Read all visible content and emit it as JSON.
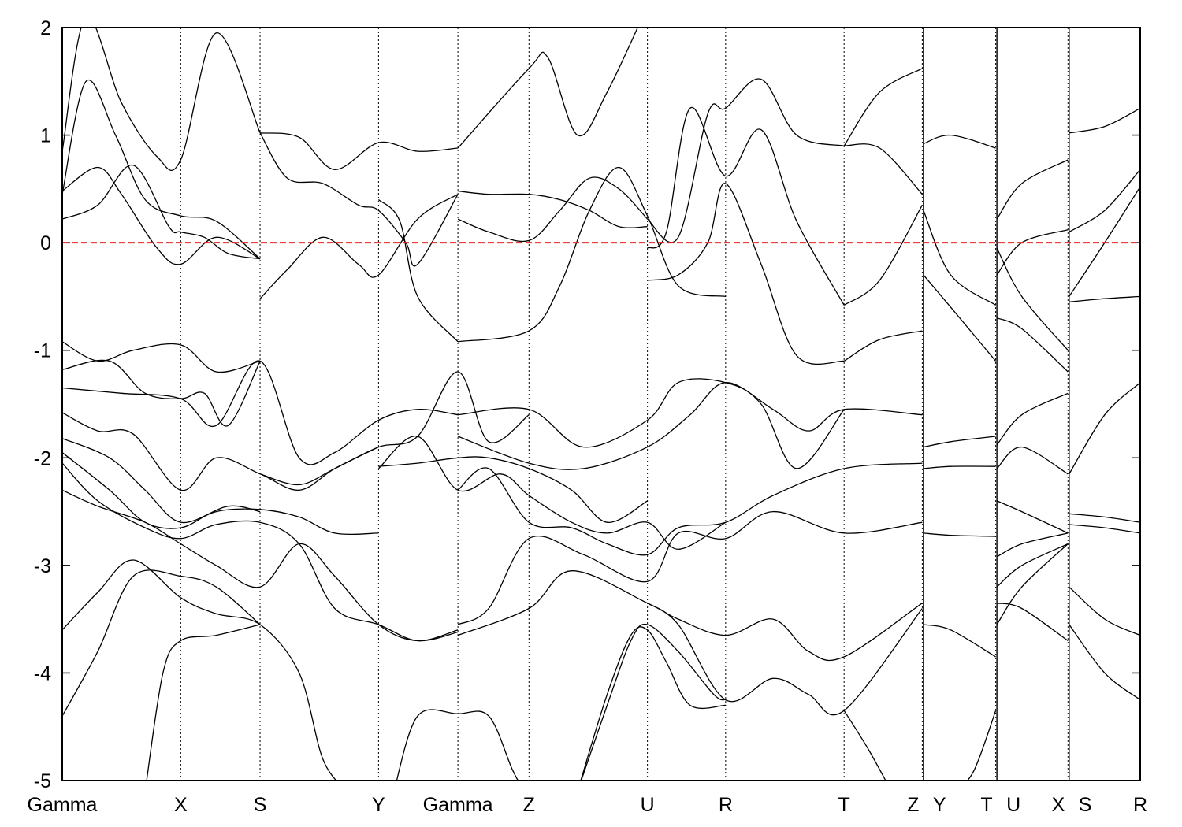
{
  "chart_data": {
    "type": "line",
    "title": "",
    "xlabel": "",
    "ylabel": "",
    "ylim": [
      -5,
      2
    ],
    "yticks": [
      "2",
      "1",
      "0",
      "-1",
      "-2",
      "-3",
      "-4",
      "-5"
    ],
    "yvalues": [
      2,
      1,
      0,
      -1,
      -2,
      -3,
      -4,
      -5
    ],
    "kpath": [
      {
        "label": "Gamma",
        "pos": 0.0
      },
      {
        "label": "X",
        "pos": 1.0
      },
      {
        "label": "S",
        "pos": 1.67
      },
      {
        "label": "Y",
        "pos": 2.67
      },
      {
        "label": "Gamma",
        "pos": 3.34
      },
      {
        "label": "Z",
        "pos": 3.94
      },
      {
        "label": "U",
        "pos": 4.94
      },
      {
        "label": "R",
        "pos": 5.6
      },
      {
        "label": "T",
        "pos": 6.6
      },
      {
        "label": "Z",
        "pos": 7.26
      },
      {
        "label": "Y",
        "pos": 7.27
      },
      {
        "label": "T",
        "pos": 7.88
      },
      {
        "label": "U",
        "pos": 7.89
      },
      {
        "label": "X",
        "pos": 8.49
      },
      {
        "label": "S",
        "pos": 8.5
      },
      {
        "label": "R",
        "pos": 9.1
      }
    ],
    "xlim": [
      0,
      9.1
    ],
    "fermi_level": 0,
    "fermi_color": "#e8231e",
    "line_color": "#000000",
    "grid": "vertical dotted lines at high-symmetry points",
    "series": [
      {
        "x": [
          0,
          0.3,
          0.6,
          0.9,
          1.0,
          1.2,
          1.4,
          1.67
        ],
        "y": [
          0.22,
          0.35,
          0.72,
          0.15,
          0.1,
          0.05,
          -0.1,
          -0.15
        ]
      },
      {
        "x": [
          0,
          0.3,
          0.5,
          0.8,
          1.0,
          1.3,
          1.67
        ],
        "y": [
          0.48,
          0.7,
          0.45,
          -0.05,
          -0.2,
          0.05,
          -0.15
        ]
      },
      {
        "x": [
          0,
          0.2,
          0.45,
          0.7,
          1.0,
          1.3,
          1.67
        ],
        "y": [
          0.45,
          1.5,
          1.0,
          0.4,
          0.25,
          0.2,
          -0.15
        ]
      },
      {
        "x": [
          0,
          0.2,
          0.5,
          0.8,
          1.0,
          1.3,
          1.67
        ],
        "y": [
          0.85,
          2.1,
          1.3,
          0.8,
          0.77,
          1.95,
          1.02
        ]
      },
      {
        "x": [
          1.67,
          2.0,
          2.3,
          2.67,
          3.0,
          3.34
        ],
        "y": [
          1.02,
          0.98,
          0.68,
          0.93,
          0.85,
          0.88
        ]
      },
      {
        "x": [
          1.67,
          1.9,
          2.2,
          2.5,
          2.67,
          3.0,
          3.34
        ],
        "y": [
          -0.52,
          -0.25,
          0.05,
          -0.2,
          -0.3,
          0.22,
          0.45
        ]
      },
      {
        "x": [
          1.67,
          1.9,
          2.2,
          2.5,
          2.67,
          2.9,
          3.0,
          3.34
        ],
        "y": [
          1.02,
          0.6,
          0.55,
          0.35,
          0.3,
          0.0,
          -0.2,
          0.45
        ]
      },
      {
        "x": [
          2.67,
          2.85,
          3.0,
          3.34
        ],
        "y": [
          0.4,
          0.2,
          -0.5,
          -0.92
        ]
      },
      {
        "x": [
          3.34,
          3.6,
          3.94,
          4.2,
          4.45,
          4.7,
          4.94
        ],
        "y": [
          0.48,
          0.45,
          0.45,
          0.4,
          0.3,
          0.15,
          0.15
        ]
      },
      {
        "x": [
          3.34,
          3.6,
          3.94,
          4.2,
          4.45,
          4.7,
          4.94
        ],
        "y": [
          0.22,
          0.1,
          0.02,
          0.3,
          0.6,
          0.5,
          0.22
        ]
      },
      {
        "x": [
          3.34,
          3.94,
          4.2,
          4.45,
          4.7,
          4.94,
          5.2,
          5.6
        ],
        "y": [
          -0.92,
          -0.82,
          -0.4,
          0.3,
          0.7,
          0.25,
          -0.4,
          -0.5
        ]
      },
      {
        "x": [
          3.34,
          3.94,
          4.1,
          4.35,
          4.6,
          4.94
        ],
        "y": [
          0.88,
          1.62,
          1.72,
          1.0,
          1.4,
          2.2
        ]
      },
      {
        "x": [
          4.94,
          5.2,
          5.45,
          5.6,
          5.9,
          6.2,
          6.6
        ],
        "y": [
          0.22,
          0.05,
          1.2,
          1.25,
          1.52,
          1.0,
          0.9
        ]
      },
      {
        "x": [
          4.94,
          5.1,
          5.3,
          5.6,
          5.9,
          6.2,
          6.6
        ],
        "y": [
          -0.05,
          0.1,
          1.25,
          0.62,
          1.05,
          0.2,
          -0.58
        ]
      },
      {
        "x": [
          4.94,
          5.2,
          5.45,
          5.6,
          5.9,
          6.2,
          6.6
        ],
        "y": [
          -0.35,
          -0.3,
          0.0,
          0.55,
          -0.2,
          -1.05,
          -1.1
        ]
      },
      {
        "x": [
          6.6,
          6.9,
          7.26
        ],
        "y": [
          0.9,
          0.88,
          0.45
        ]
      },
      {
        "x": [
          6.6,
          6.9,
          7.26
        ],
        "y": [
          -0.58,
          -0.35,
          0.35
        ]
      },
      {
        "x": [
          6.6,
          6.9,
          7.26
        ],
        "y": [
          -1.1,
          -0.9,
          -0.82
        ]
      },
      {
        "x": [
          6.6,
          6.9,
          7.26
        ],
        "y": [
          0.9,
          1.4,
          1.62
        ]
      },
      {
        "x": [
          7.27,
          7.5,
          7.88
        ],
        "y": [
          0.92,
          1.0,
          0.88
        ]
      },
      {
        "x": [
          7.27,
          7.5,
          7.88
        ],
        "y": [
          0.3,
          -0.3,
          -0.58
        ]
      },
      {
        "x": [
          7.27,
          7.5,
          7.88
        ],
        "y": [
          -0.3,
          -0.6,
          -1.1
        ]
      },
      {
        "x": [
          7.89,
          8.1,
          8.49
        ],
        "y": [
          0.22,
          0.55,
          0.77
        ]
      },
      {
        "x": [
          7.89,
          8.1,
          8.49
        ],
        "y": [
          -0.3,
          0.0,
          0.12
        ]
      },
      {
        "x": [
          7.89,
          8.1,
          8.49
        ],
        "y": [
          -0.05,
          -0.5,
          -1.0
        ]
      },
      {
        "x": [
          7.89,
          8.1,
          8.49
        ],
        "y": [
          -0.7,
          -0.8,
          -1.2
        ]
      },
      {
        "x": [
          8.5,
          8.8,
          9.1
        ],
        "y": [
          1.02,
          1.08,
          1.25
        ]
      },
      {
        "x": [
          8.5,
          8.8,
          9.1
        ],
        "y": [
          -0.55,
          -0.52,
          -0.5
        ]
      },
      {
        "x": [
          8.5,
          8.8,
          9.1
        ],
        "y": [
          -2.15,
          -1.6,
          -1.3
        ]
      },
      {
        "x": [
          0,
          0.3,
          0.6,
          1.0,
          1.3,
          1.67
        ],
        "y": [
          -0.92,
          -1.1,
          -1.0,
          -0.95,
          -1.2,
          -1.1
        ]
      },
      {
        "x": [
          0,
          0.4,
          0.7,
          1.0,
          1.2,
          1.4,
          1.67
        ],
        "y": [
          -1.18,
          -1.1,
          -1.4,
          -1.45,
          -1.4,
          -1.7,
          -1.1
        ]
      },
      {
        "x": [
          0,
          0.5,
          1.0,
          1.3,
          1.67,
          2.0,
          2.3,
          2.67,
          3.0,
          3.34
        ],
        "y": [
          -1.35,
          -1.4,
          -1.45,
          -1.7,
          -1.1,
          -2.0,
          -1.95,
          -1.65,
          -1.55,
          -1.6
        ]
      },
      {
        "x": [
          1.67,
          2.0,
          2.3,
          2.67,
          3.0,
          3.34,
          3.6,
          3.94
        ],
        "y": [
          -2.15,
          -2.25,
          -2.1,
          -1.9,
          -1.8,
          -1.2,
          -1.85,
          -1.6
        ]
      },
      {
        "x": [
          3.34,
          3.94,
          4.4,
          4.94,
          5.2,
          5.6,
          5.9,
          6.2,
          6.6
        ],
        "y": [
          -1.6,
          -1.55,
          -1.9,
          -1.65,
          -1.3,
          -1.3,
          -1.5,
          -2.1,
          -1.55
        ]
      },
      {
        "x": [
          3.34,
          3.94,
          4.4,
          4.94,
          5.3,
          5.6,
          6.0,
          6.3,
          6.6,
          7.26
        ],
        "y": [
          -1.8,
          -2.05,
          -2.1,
          -1.9,
          -1.6,
          -1.3,
          -1.55,
          -1.75,
          -1.55,
          -1.6
        ]
      },
      {
        "x": [
          0,
          0.3,
          0.6,
          1.0,
          1.3,
          1.67,
          2.0,
          2.3,
          2.67
        ],
        "y": [
          -1.58,
          -1.75,
          -1.78,
          -2.3,
          -2.0,
          -2.15,
          -2.3,
          -2.1,
          -1.9
        ]
      },
      {
        "x": [
          0,
          0.4,
          0.7,
          1.0,
          1.4,
          1.67
        ],
        "y": [
          -1.82,
          -2.0,
          -2.3,
          -2.6,
          -2.45,
          -2.5
        ]
      },
      {
        "x": [
          0,
          0.4,
          0.7,
          1.0,
          1.3,
          1.67,
          2.0,
          2.3,
          2.67
        ],
        "y": [
          -1.95,
          -2.3,
          -2.6,
          -2.65,
          -2.5,
          -2.48,
          -2.55,
          -2.7,
          -2.7
        ]
      },
      {
        "x": [
          0,
          0.3,
          0.7,
          1.0,
          1.3,
          1.67,
          2.0,
          2.3,
          2.67,
          3.0,
          3.34
        ],
        "y": [
          -2.05,
          -2.4,
          -2.65,
          -2.75,
          -2.62,
          -2.6,
          -2.8,
          -3.4,
          -3.55,
          -3.7,
          -3.62
        ]
      },
      {
        "x": [
          0,
          0.3,
          0.7,
          1.0,
          1.3,
          1.67,
          2.0,
          2.3,
          2.67,
          3.0,
          3.34
        ],
        "y": [
          -2.3,
          -2.45,
          -2.6,
          -2.8,
          -3.0,
          -3.2,
          -2.8,
          -3.1,
          -3.55,
          -3.7,
          -3.6
        ]
      },
      {
        "x": [
          2.67,
          3.0,
          3.34,
          3.6,
          3.94,
          4.3,
          4.6,
          4.94
        ],
        "y": [
          -2.08,
          -2.05,
          -2.0,
          -2.0,
          -2.1,
          -2.3,
          -2.6,
          -2.4
        ]
      },
      {
        "x": [
          2.67,
          3.0,
          3.34,
          3.7,
          3.94,
          4.3,
          4.6,
          4.94,
          5.2,
          5.6
        ],
        "y": [
          -2.1,
          -1.8,
          -2.3,
          -2.15,
          -2.35,
          -2.6,
          -2.7,
          -2.6,
          -2.85,
          -2.6
        ]
      },
      {
        "x": [
          3.34,
          3.6,
          3.94,
          4.3,
          4.6,
          4.94,
          5.2,
          5.6,
          6.0,
          6.6,
          7.26
        ],
        "y": [
          -2.3,
          -2.1,
          -2.6,
          -2.65,
          -2.8,
          -2.9,
          -2.65,
          -2.6,
          -2.35,
          -2.1,
          -2.05
        ]
      },
      {
        "x": [
          3.34,
          3.6,
          3.94,
          4.4,
          4.94,
          5.2,
          5.6,
          6.0,
          6.6,
          7.26
        ],
        "y": [
          -3.55,
          -3.4,
          -2.75,
          -2.9,
          -3.15,
          -2.7,
          -2.75,
          -2.5,
          -2.7,
          -2.6
        ]
      },
      {
        "x": [
          3.34,
          3.94,
          4.3,
          4.94,
          5.2,
          5.6,
          6.0,
          6.3,
          6.6,
          7.26
        ],
        "y": [
          -3.65,
          -3.4,
          -3.05,
          -3.35,
          -3.5,
          -3.65,
          -3.5,
          -3.8,
          -3.85,
          -3.35
        ]
      },
      {
        "x": [
          4.94,
          5.2,
          5.6,
          6.0,
          6.3,
          6.6,
          7.26
        ],
        "y": [
          -3.35,
          -3.55,
          -4.25,
          -4.05,
          -4.2,
          -4.35,
          -3.4
        ]
      },
      {
        "x": [
          0,
          0.3,
          0.6,
          1.0,
          1.3,
          1.67,
          2.0,
          2.2,
          2.4
        ],
        "y": [
          -3.6,
          -3.25,
          -2.95,
          -3.3,
          -3.45,
          -3.55,
          -4.0,
          -4.8,
          -5.1
        ]
      },
      {
        "x": [
          0,
          0.3,
          0.6,
          1.0,
          1.3,
          1.67
        ],
        "y": [
          -4.4,
          -3.8,
          -3.1,
          -3.1,
          -3.2,
          -3.55
        ]
      },
      {
        "x": [
          0.7,
          0.85,
          1.0,
          1.3,
          1.67
        ],
        "y": [
          -5.1,
          -4.0,
          -3.7,
          -3.65,
          -3.55
        ]
      },
      {
        "x": [
          2.8,
          3.0,
          3.34,
          3.6,
          3.8,
          3.9
        ],
        "y": [
          -5.1,
          -4.4,
          -4.38,
          -4.4,
          -4.9,
          -5.1
        ]
      },
      {
        "x": [
          4.35,
          4.6,
          4.8,
          4.94,
          5.2,
          5.5,
          5.6
        ],
        "y": [
          -5.1,
          -4.3,
          -3.7,
          -3.55,
          -3.8,
          -4.2,
          -4.25
        ]
      },
      {
        "x": [
          4.35,
          4.6,
          4.8,
          4.94,
          5.1,
          5.3,
          5.6
        ],
        "y": [
          -5.1,
          -4.2,
          -3.65,
          -3.6,
          -3.9,
          -4.3,
          -4.3
        ]
      },
      {
        "x": [
          6.6,
          6.8,
          7.0
        ],
        "y": [
          -4.35,
          -4.7,
          -5.1
        ]
      },
      {
        "x": [
          7.27,
          7.5,
          7.88
        ],
        "y": [
          -1.9,
          -1.85,
          -1.8
        ]
      },
      {
        "x": [
          7.27,
          7.5,
          7.88
        ],
        "y": [
          -2.1,
          -2.08,
          -2.08
        ]
      },
      {
        "x": [
          7.27,
          7.5,
          7.88
        ],
        "y": [
          -2.7,
          -2.72,
          -2.73
        ]
      },
      {
        "x": [
          7.27,
          7.5,
          7.88
        ],
        "y": [
          -3.55,
          -3.6,
          -3.85
        ]
      },
      {
        "x": [
          7.55,
          7.7,
          7.88
        ],
        "y": [
          -5.1,
          -4.9,
          -4.35
        ]
      },
      {
        "x": [
          7.89,
          8.1,
          8.49
        ],
        "y": [
          -1.88,
          -1.6,
          -1.4
        ]
      },
      {
        "x": [
          7.89,
          8.1,
          8.49
        ],
        "y": [
          -2.1,
          -1.9,
          -2.15
        ]
      },
      {
        "x": [
          7.89,
          8.1,
          8.49
        ],
        "y": [
          -2.4,
          -2.5,
          -2.7
        ]
      },
      {
        "x": [
          7.89,
          8.1,
          8.49
        ],
        "y": [
          -2.92,
          -2.8,
          -2.7
        ]
      },
      {
        "x": [
          7.89,
          8.1,
          8.49
        ],
        "y": [
          -3.2,
          -3.0,
          -2.8
        ]
      },
      {
        "x": [
          7.89,
          8.1,
          8.49
        ],
        "y": [
          -3.55,
          -3.2,
          -2.8
        ]
      },
      {
        "x": [
          7.89,
          8.1,
          8.49
        ],
        "y": [
          -3.35,
          -3.4,
          -3.7
        ]
      },
      {
        "x": [
          8.5,
          8.8,
          9.1
        ],
        "y": [
          -2.52,
          -2.55,
          -2.6
        ]
      },
      {
        "x": [
          8.5,
          8.8,
          9.1
        ],
        "y": [
          -2.62,
          -2.65,
          -2.7
        ]
      },
      {
        "x": [
          8.5,
          8.8,
          9.1
        ],
        "y": [
          -3.2,
          -3.5,
          -3.65
        ]
      },
      {
        "x": [
          8.5,
          8.8,
          9.1
        ],
        "y": [
          -3.55,
          -4.0,
          -4.25
        ]
      },
      {
        "x": [
          8.5,
          8.8,
          9.1
        ],
        "y": [
          0.1,
          0.3,
          0.68
        ]
      },
      {
        "x": [
          8.5,
          8.8,
          9.1
        ],
        "y": [
          -0.5,
          0.0,
          0.52
        ]
      }
    ]
  }
}
